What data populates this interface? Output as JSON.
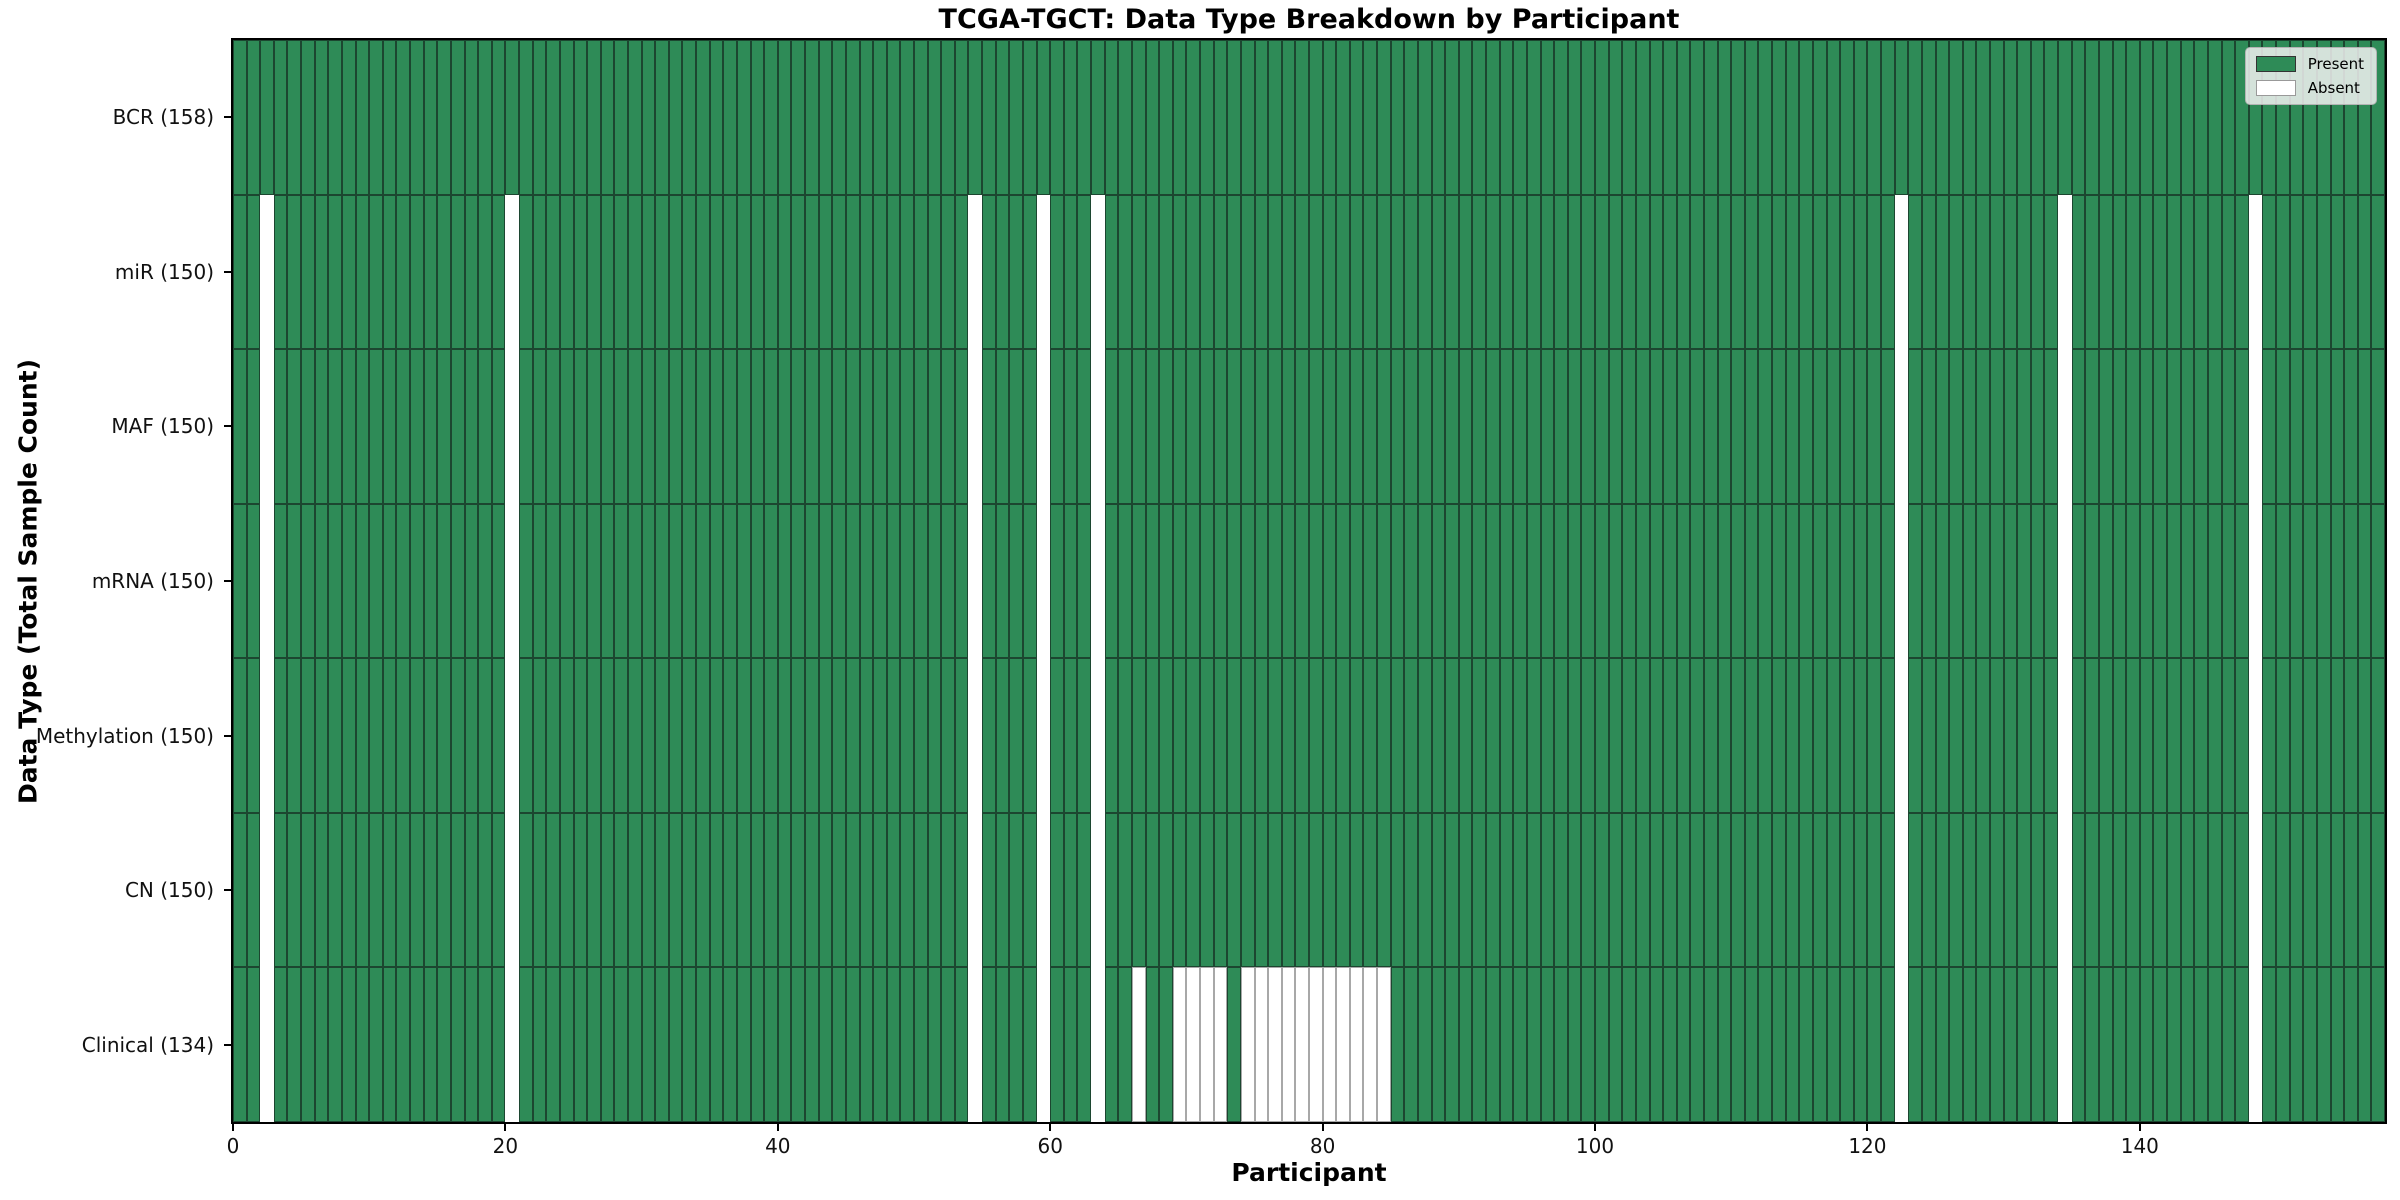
{
  "title": "TCGA-TGCT: Data Type Breakdown by Participant",
  "xlabel": "Participant",
  "ylabel": "Data Type (Total Sample Count)",
  "colors": {
    "present": "#2e8b57",
    "present_edge": "#1c4630",
    "absent": "#ffffff",
    "absent_edge": "#a8a8a8",
    "legend_bg": "#f1f1f1",
    "legend_border": "#b3b3b3",
    "spine": "#000000"
  },
  "chart_data": {
    "type": "heatmap",
    "title": "TCGA-TGCT: Data Type Breakdown by Participant",
    "xlabel": "Participant",
    "ylabel": "Data Type (Total Sample Count)",
    "n_participants": 158,
    "x_range": [
      0,
      158
    ],
    "x_ticks": [
      0,
      20,
      40,
      60,
      80,
      100,
      120,
      140
    ],
    "grid": false,
    "legend_position": "upper right",
    "legend": [
      {
        "label": "Present",
        "color": "#2e8b57"
      },
      {
        "label": "Absent",
        "color": "#ffffff"
      }
    ],
    "rows": [
      {
        "label": "BCR (158)",
        "name": "BCR",
        "present_count": 158,
        "absent_participants": []
      },
      {
        "label": "miR (150)",
        "name": "miR",
        "present_count": 150,
        "absent_participants": [
          2,
          20,
          54,
          59,
          63,
          122,
          134,
          148
        ]
      },
      {
        "label": "MAF (150)",
        "name": "MAF",
        "present_count": 150,
        "absent_participants": [
          2,
          20,
          54,
          59,
          63,
          122,
          134,
          148
        ]
      },
      {
        "label": "mRNA (150)",
        "name": "mRNA",
        "present_count": 150,
        "absent_participants": [
          2,
          20,
          54,
          59,
          63,
          122,
          134,
          148
        ]
      },
      {
        "label": "Methylation (150)",
        "name": "Methylation",
        "present_count": 150,
        "absent_participants": [
          2,
          20,
          54,
          59,
          63,
          122,
          134,
          148
        ]
      },
      {
        "label": "CN (150)",
        "name": "CN",
        "present_count": 150,
        "absent_participants": [
          2,
          20,
          54,
          59,
          63,
          122,
          134,
          148
        ]
      },
      {
        "label": "Clinical (134)",
        "name": "Clinical",
        "present_count": 134,
        "absent_participants": [
          2,
          20,
          54,
          59,
          63,
          66,
          69,
          70,
          71,
          72,
          74,
          75,
          76,
          77,
          78,
          79,
          80,
          81,
          82,
          83,
          84,
          122,
          134,
          148
        ]
      }
    ]
  }
}
